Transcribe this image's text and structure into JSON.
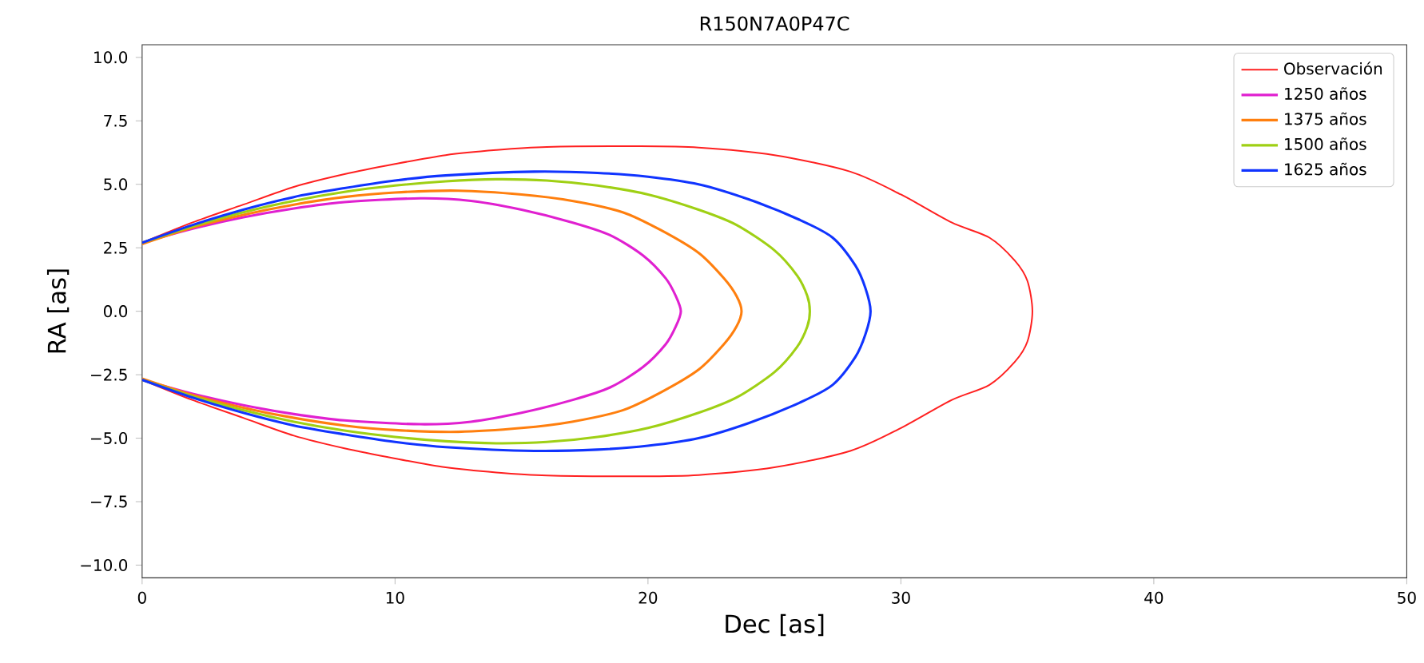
{
  "chart_data": {
    "type": "line",
    "title": "R150N7A0P47C",
    "xlabel": "Dec [as]",
    "ylabel": "RA [as]",
    "xlim": [
      0,
      50
    ],
    "ylim": [
      -10.5,
      10.5
    ],
    "xticks": [
      0,
      10,
      20,
      30,
      40,
      50
    ],
    "yticks": [
      {
        "value": -10,
        "label": "−10.0"
      },
      {
        "value": -7.5,
        "label": "−7.5"
      },
      {
        "value": -5,
        "label": "−5.0"
      },
      {
        "value": -2.5,
        "label": "−2.5"
      },
      {
        "value": 0,
        "label": "0.0"
      },
      {
        "value": 2.5,
        "label": "2.5"
      },
      {
        "value": 5,
        "label": "5.0"
      },
      {
        "value": 7.5,
        "label": "7.5"
      },
      {
        "value": 10,
        "label": "10.0"
      }
    ],
    "grid": false,
    "legend": "top right",
    "marker": "none",
    "line_style": "solid",
    "series": [
      {
        "name": "Observación",
        "color": "#ff2020",
        "x": [
          0,
          2,
          4,
          6,
          8,
          10,
          12,
          14,
          16,
          19.5,
          22,
          25,
          28,
          30,
          32,
          33.5,
          34.5,
          35,
          35.2,
          35,
          34.5,
          33.5,
          32,
          30,
          28,
          25,
          22,
          19.5,
          16,
          14,
          12,
          10,
          8,
          6,
          4,
          2,
          0
        ],
        "values": [
          2.7,
          3.5,
          4.2,
          4.9,
          5.4,
          5.8,
          6.15,
          6.35,
          6.47,
          6.5,
          6.45,
          6.15,
          5.5,
          4.6,
          3.5,
          2.9,
          2.0,
          1.2,
          0,
          -1.2,
          -2.0,
          -2.9,
          -3.5,
          -4.6,
          -5.5,
          -6.15,
          -6.45,
          -6.5,
          -6.47,
          -6.35,
          -6.15,
          -5.8,
          -5.4,
          -4.9,
          -4.2,
          -3.5,
          -2.7
        ]
      },
      {
        "name": "1250 años",
        "color": "#e020d0",
        "x": [
          0,
          2,
          4,
          6,
          8,
          11,
          13,
          15,
          17,
          18.5,
          19.8,
          20.7,
          21.1,
          21.3,
          21.1,
          20.7,
          19.8,
          18.5,
          17,
          15,
          13,
          11,
          8,
          6,
          4,
          2,
          0
        ],
        "values": [
          2.7,
          3.25,
          3.7,
          4.05,
          4.3,
          4.45,
          4.35,
          4.0,
          3.5,
          3.0,
          2.2,
          1.3,
          0.6,
          0,
          -0.6,
          -1.3,
          -2.2,
          -3.0,
          -3.5,
          -4.0,
          -4.35,
          -4.45,
          -4.3,
          -4.05,
          -3.7,
          -3.25,
          -2.7
        ]
      },
      {
        "name": "1375 años",
        "color": "#ff7f0e",
        "x": [
          0,
          2,
          4,
          6,
          8,
          10,
          12.5,
          15,
          17,
          19,
          20.5,
          22,
          23,
          23.5,
          23.7,
          23.5,
          23,
          22,
          20.5,
          19,
          17,
          15,
          12.5,
          10,
          8,
          6,
          4,
          2,
          0
        ],
        "values": [
          2.65,
          3.3,
          3.8,
          4.2,
          4.5,
          4.68,
          4.75,
          4.6,
          4.35,
          3.9,
          3.2,
          2.3,
          1.3,
          0.6,
          0,
          -0.6,
          -1.3,
          -2.3,
          -3.2,
          -3.9,
          -4.35,
          -4.6,
          -4.75,
          -4.68,
          -4.5,
          -4.2,
          -3.8,
          -3.3,
          -2.65
        ]
      },
      {
        "name": "1500 años",
        "color": "#9fd014",
        "x": [
          0,
          2,
          4,
          6,
          8,
          10,
          12,
          14,
          16,
          18,
          20,
          22,
          23.5,
          25,
          25.9,
          26.3,
          26.4,
          26.3,
          25.9,
          25,
          23.5,
          22,
          20,
          18,
          16,
          14,
          12,
          10,
          8,
          6,
          4,
          2,
          0
        ],
        "values": [
          2.7,
          3.35,
          3.9,
          4.35,
          4.7,
          4.95,
          5.12,
          5.2,
          5.15,
          4.95,
          4.6,
          4.0,
          3.4,
          2.4,
          1.4,
          0.6,
          0,
          -0.6,
          -1.4,
          -2.4,
          -3.4,
          -4.0,
          -4.6,
          -4.95,
          -5.15,
          -5.2,
          -5.12,
          -4.95,
          -4.7,
          -4.35,
          -3.9,
          -3.35,
          -2.7
        ]
      },
      {
        "name": "1625 años",
        "color": "#1034ff",
        "x": [
          0,
          2,
          4,
          6,
          8,
          10,
          12,
          15.5,
          18,
          20,
          22,
          24,
          26,
          27.3,
          28.2,
          28.6,
          28.8,
          28.6,
          28.2,
          27.3,
          26,
          24,
          22,
          20,
          18,
          15.5,
          12,
          10,
          8,
          6,
          4,
          2,
          0
        ],
        "values": [
          2.7,
          3.4,
          4.0,
          4.5,
          4.85,
          5.15,
          5.35,
          5.5,
          5.45,
          5.3,
          5.0,
          4.4,
          3.6,
          2.9,
          1.8,
          0.9,
          0,
          -0.9,
          -1.8,
          -2.9,
          -3.6,
          -4.4,
          -5.0,
          -5.3,
          -5.45,
          -5.5,
          -5.35,
          -5.15,
          -4.85,
          -4.5,
          -4.0,
          -3.4,
          -2.7
        ]
      }
    ]
  }
}
